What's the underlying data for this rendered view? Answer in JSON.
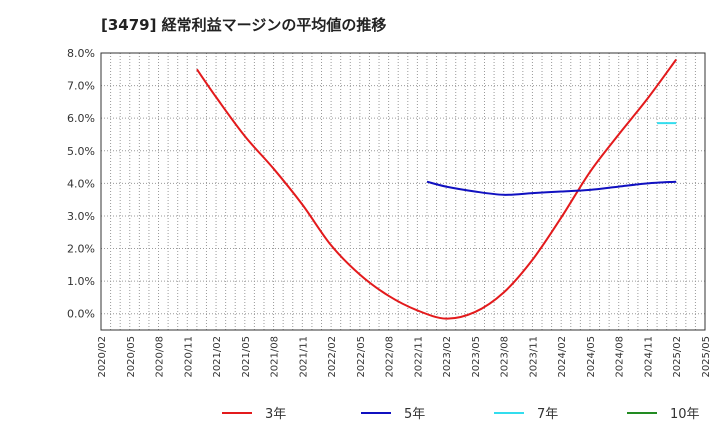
{
  "chart_data": {
    "type": "line",
    "title": "[3479]  経常利益マージンの平均値の推移",
    "xlabel": "",
    "ylabel": "",
    "ylim": [
      -0.5,
      8.0
    ],
    "y_unit": "%",
    "y_ticks": [
      "0.0%",
      "1.0%",
      "2.0%",
      "3.0%",
      "4.0%",
      "5.0%",
      "6.0%",
      "7.0%",
      "8.0%"
    ],
    "x_ticks": [
      "2020/02",
      "2020/05",
      "2020/08",
      "2020/11",
      "2021/02",
      "2021/05",
      "2021/08",
      "2021/11",
      "2022/02",
      "2022/05",
      "2022/08",
      "2022/11",
      "2023/02",
      "2023/05",
      "2023/08",
      "2023/11",
      "2024/02",
      "2024/05",
      "2024/08",
      "2024/11",
      "2025/02",
      "2025/05"
    ],
    "grid": true,
    "legend_position": "bottom",
    "series": [
      {
        "name": "3年",
        "color": "#e31a1c",
        "points": [
          [
            "2020/12",
            7.5
          ],
          [
            "2021/02",
            6.65
          ],
          [
            "2021/05",
            5.45
          ],
          [
            "2021/08",
            4.45
          ],
          [
            "2021/11",
            3.35
          ],
          [
            "2022/02",
            2.1
          ],
          [
            "2022/05",
            1.2
          ],
          [
            "2022/08",
            0.55
          ],
          [
            "2022/11",
            0.1
          ],
          [
            "2023/02",
            -0.15
          ],
          [
            "2023/05",
            0.05
          ],
          [
            "2023/08",
            0.65
          ],
          [
            "2023/11",
            1.65
          ],
          [
            "2024/02",
            2.95
          ],
          [
            "2024/05",
            4.35
          ],
          [
            "2024/08",
            5.5
          ],
          [
            "2024/11",
            6.6
          ],
          [
            "2025/02",
            7.8
          ]
        ]
      },
      {
        "name": "5年",
        "color": "#1010c0",
        "points": [
          [
            "2022/12",
            4.05
          ],
          [
            "2023/02",
            3.9
          ],
          [
            "2023/05",
            3.75
          ],
          [
            "2023/08",
            3.65
          ],
          [
            "2023/11",
            3.7
          ],
          [
            "2024/02",
            3.75
          ],
          [
            "2024/05",
            3.8
          ],
          [
            "2024/08",
            3.9
          ],
          [
            "2024/11",
            4.0
          ],
          [
            "2025/02",
            4.05
          ]
        ]
      },
      {
        "name": "7年",
        "color": "#33ddee",
        "points": [
          [
            "2024/12",
            5.85
          ],
          [
            "2025/02",
            5.85
          ]
        ]
      },
      {
        "name": "10年",
        "color": "#228b22",
        "points": []
      }
    ]
  }
}
